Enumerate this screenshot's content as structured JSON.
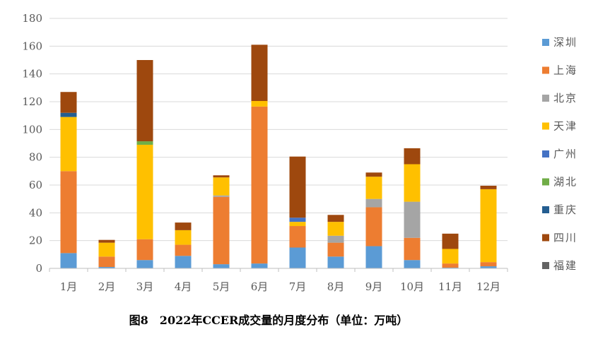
{
  "caption": "图8　2022年CCER成交量的月度分布（单位：万吨）",
  "chart_data": {
    "type": "bar",
    "stacked": true,
    "categories": [
      "1月",
      "2月",
      "3月",
      "4月",
      "5月",
      "6月",
      "7月",
      "8月",
      "9月",
      "10月",
      "11月",
      "12月"
    ],
    "ylim": [
      0,
      180
    ],
    "yticks": [
      0,
      20,
      40,
      60,
      80,
      100,
      120,
      140,
      160,
      180
    ],
    "grid": true,
    "legend_position": "right",
    "series": [
      {
        "name": "深圳",
        "color": "#5B9BD5",
        "values": [
          11,
          1,
          6,
          9,
          3,
          3.5,
          15,
          8.5,
          16,
          6,
          0.5,
          1.5
        ]
      },
      {
        "name": "上海",
        "color": "#ED7D31",
        "values": [
          59,
          7.5,
          15,
          8,
          48.5,
          113,
          15.5,
          10,
          28,
          16,
          3,
          3
        ]
      },
      {
        "name": "北京",
        "color": "#A5A5A5",
        "values": [
          0,
          0,
          0,
          0,
          1,
          0,
          0,
          5,
          6,
          26,
          0,
          0
        ]
      },
      {
        "name": "天津",
        "color": "#FFC000",
        "values": [
          39,
          10,
          68,
          10.5,
          13,
          4,
          3,
          10,
          16,
          27,
          10.5,
          52.5
        ]
      },
      {
        "name": "广州",
        "color": "#4472C4",
        "values": [
          0,
          0,
          0,
          0,
          0,
          0,
          3,
          0,
          0,
          0,
          0,
          0
        ]
      },
      {
        "name": "湖北",
        "color": "#70AD47",
        "values": [
          0,
          0,
          2.5,
          0,
          0,
          0,
          0,
          0,
          0,
          0,
          0,
          0
        ]
      },
      {
        "name": "重庆",
        "color": "#255E91",
        "values": [
          3,
          0,
          0,
          0,
          0,
          0,
          0,
          0,
          0,
          0,
          0,
          0
        ]
      },
      {
        "name": "四川",
        "color": "#9E480E",
        "values": [
          15,
          2,
          58.5,
          5.5,
          1.5,
          40.5,
          44,
          5,
          3,
          11.5,
          11,
          2.5
        ]
      },
      {
        "name": "福建",
        "color": "#636363",
        "values": [
          0,
          0,
          0,
          0,
          0,
          0,
          0,
          0,
          0,
          0,
          0,
          0
        ]
      }
    ]
  }
}
